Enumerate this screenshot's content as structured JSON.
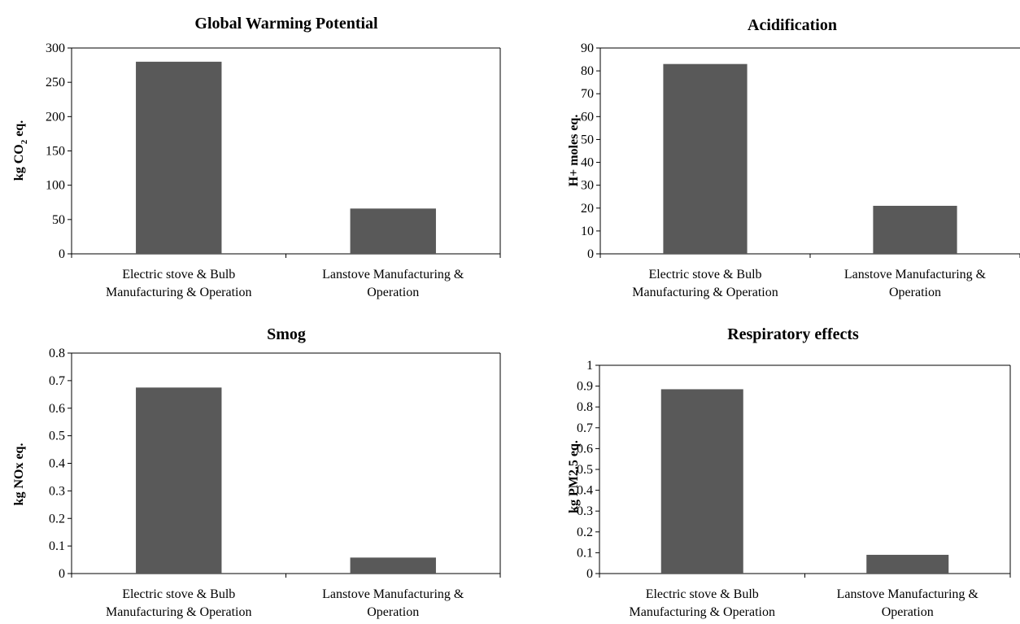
{
  "chart_data": [
    {
      "type": "bar",
      "title": "Global Warming Potential",
      "ylabel": {
        "prefix": "kg CO",
        "sub": "2",
        "suffix": " eq."
      },
      "categories": [
        [
          "Electric stove & Bulb",
          "Manufacturing & Operation"
        ],
        [
          "Lanstove Manufacturing &",
          "Operation"
        ]
      ],
      "values": [
        280,
        66
      ],
      "ylim": [
        0,
        300
      ],
      "yticks": [
        "0",
        "50",
        "100",
        "150",
        "200",
        "250",
        "300"
      ],
      "bar_color": "#595959",
      "box": "top-right"
    },
    {
      "type": "bar",
      "title": "Acidification",
      "ylabel": "H+ moles eq.",
      "categories": [
        [
          "Electric stove & Bulb",
          "Manufacturing & Operation"
        ],
        [
          "Lanstove Manufacturing &",
          "Operation"
        ]
      ],
      "values": [
        83,
        21
      ],
      "ylim": [
        0,
        90
      ],
      "yticks": [
        "0",
        "10",
        "20",
        "30",
        "40",
        "50",
        "60",
        "70",
        "80",
        "90"
      ],
      "bar_color": "#595959",
      "box": "top-only"
    },
    {
      "type": "bar",
      "title": "Smog",
      "ylabel": "kg NOx eq.",
      "categories": [
        [
          "Electric stove & Bulb",
          "Manufacturing & Operation"
        ],
        [
          "Lanstove Manufacturing &",
          "Operation"
        ]
      ],
      "values": [
        0.675,
        0.058
      ],
      "ylim": [
        0,
        0.8
      ],
      "yticks": [
        "0",
        "0.1",
        "0.2",
        "0.3",
        "0.4",
        "0.5",
        "0.6",
        "0.7",
        "0.8"
      ],
      "bar_color": "#595959",
      "box": "top-right"
    },
    {
      "type": "bar",
      "title": "Respiratory effects",
      "ylabel": "kg PM2.5 eq.",
      "categories": [
        [
          "Electric stove & Bulb",
          "Manufacturing & Operation"
        ],
        [
          "Lanstove Manufacturing &",
          "Operation"
        ]
      ],
      "values": [
        0.885,
        0.09
      ],
      "ylim": [
        0,
        1
      ],
      "yticks": [
        "0",
        "0.1",
        "0.2",
        "0.3",
        "0.4",
        "0.5",
        "0.6",
        "0.7",
        "0.8",
        "0.9",
        "1"
      ],
      "bar_color": "#595959",
      "box": "top-right"
    }
  ]
}
